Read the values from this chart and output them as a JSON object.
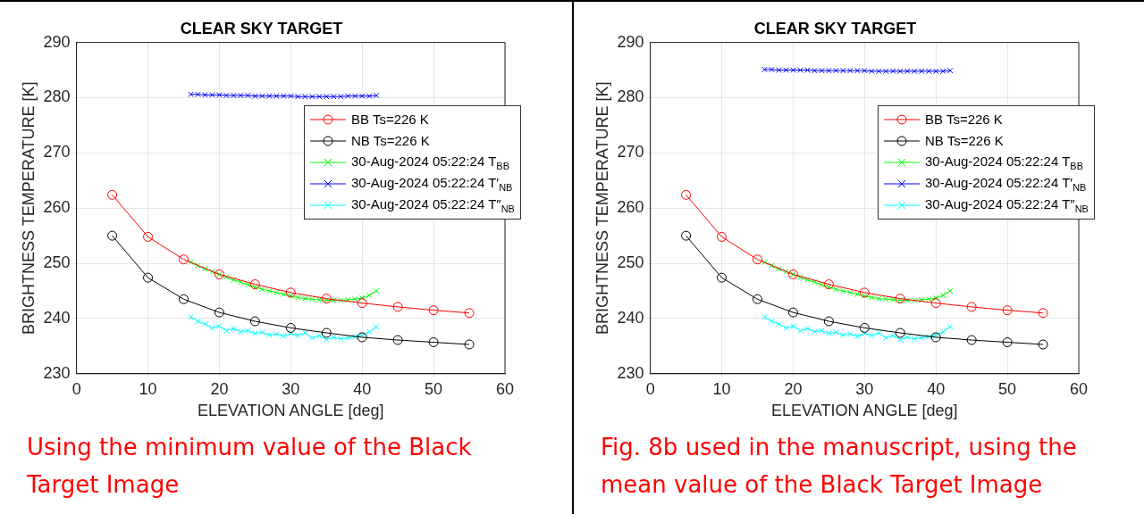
{
  "chart_data": [
    {
      "type": "line",
      "title": "CLEAR SKY TARGET",
      "xlabel": "ELEVATION ANGLE [deg]",
      "ylabel": "BRIGHTNESS TEMPERATURE [K]",
      "xlim": [
        0,
        60
      ],
      "xticks": [
        0,
        10,
        20,
        30,
        40,
        50,
        60
      ],
      "ylim": [
        230,
        290
      ],
      "yticks": [
        230,
        240,
        250,
        260,
        270,
        280,
        290
      ],
      "grid": true,
      "legend": "top right",
      "line_style": "solid",
      "annotations": [
        "Using the minimum value of the Black Target Image"
      ],
      "series": [
        {
          "name": "BB Ts=226 K",
          "color": "#ff0000",
          "marker": "circle",
          "x": [
            5,
            10,
            15,
            20,
            25,
            30,
            35,
            40,
            45,
            50,
            55
          ],
          "values": [
            262.4,
            254.8,
            250.7,
            248.0,
            246.2,
            244.7,
            243.6,
            242.8,
            242.1,
            241.5,
            241.0
          ]
        },
        {
          "name": "NB Ts=226 K",
          "color": "#000000",
          "marker": "circle",
          "x": [
            5,
            10,
            15,
            20,
            25,
            30,
            35,
            40,
            45,
            50,
            55
          ],
          "values": [
            255.0,
            247.4,
            243.5,
            241.1,
            239.5,
            238.3,
            237.4,
            236.6,
            236.1,
            235.7,
            235.3
          ]
        },
        {
          "name": "30-Aug-2024 05:22:24 T$_{BB}$",
          "color": "#00ff00",
          "marker": "cross",
          "x": [
            16,
            17,
            18,
            19,
            20,
            21,
            22,
            23,
            24,
            25,
            26,
            27,
            28,
            29,
            30,
            31,
            32,
            33,
            34,
            35,
            36,
            37,
            38,
            39,
            40,
            41,
            42
          ],
          "values": [
            250.2,
            249.6,
            249,
            248.5,
            248,
            247.5,
            247,
            246.6,
            246.1,
            245.7,
            245.3,
            245,
            244.7,
            244.4,
            244.1,
            243.8,
            243.6,
            243.5,
            243.4,
            243.3,
            243.3,
            243.3,
            243.4,
            243.5,
            243.7,
            244.2,
            245.0
          ]
        },
        {
          "name": "30-Aug-2024 05:22:24 T′$_{NB}$",
          "color": "#0000ff",
          "marker": "cross",
          "x": [
            16,
            17,
            18,
            19,
            20,
            21,
            22,
            23,
            24,
            25,
            26,
            27,
            28,
            29,
            30,
            31,
            32,
            33,
            34,
            35,
            36,
            37,
            38,
            39,
            40,
            41,
            42
          ],
          "values": [
            280.6,
            280.6,
            280.5,
            280.5,
            280.5,
            280.4,
            280.4,
            280.4,
            280.4,
            280.3,
            280.3,
            280.3,
            280.3,
            280.3,
            280.3,
            280.2,
            280.2,
            280.2,
            280.2,
            280.2,
            280.2,
            280.2,
            280.3,
            280.3,
            280.3,
            280.3,
            280.4
          ]
        },
        {
          "name": "30-Aug-2024 05:22:24 T″$_{NB}$",
          "color": "#00ffff",
          "marker": "cross",
          "x": [
            16,
            17,
            18,
            19,
            20,
            21,
            22,
            23,
            24,
            25,
            26,
            27,
            28,
            29,
            30,
            31,
            32,
            33,
            34,
            35,
            36,
            37,
            38,
            39,
            40,
            41,
            42
          ],
          "values": [
            240.3,
            239.5,
            239,
            238.3,
            238.6,
            237.8,
            238.2,
            237.6,
            237.8,
            237.3,
            237.5,
            237.0,
            237.2,
            236.8,
            237.3,
            236.9,
            237.4,
            236.5,
            236.9,
            236.2,
            236.6,
            236.3,
            236.5,
            236.7,
            237,
            237.6,
            238.5
          ]
        }
      ]
    },
    {
      "type": "line",
      "title": "CLEAR SKY TARGET",
      "xlabel": "ELEVATION ANGLE [deg]",
      "ylabel": "BRIGHTNESS TEMPERATURE [K]",
      "xlim": [
        0,
        60
      ],
      "xticks": [
        0,
        10,
        20,
        30,
        40,
        50,
        60
      ],
      "ylim": [
        230,
        290
      ],
      "yticks": [
        230,
        240,
        250,
        260,
        270,
        280,
        290
      ],
      "grid": true,
      "legend": "top right",
      "line_style": "solid",
      "annotations": [
        "Fig. 8b used in the manuscript, using the mean value of the Black Target Image"
      ],
      "series": [
        {
          "name": "BB Ts=226 K",
          "color": "#ff0000",
          "marker": "circle",
          "x": [
            5,
            10,
            15,
            20,
            25,
            30,
            35,
            40,
            45,
            50,
            55
          ],
          "values": [
            262.4,
            254.8,
            250.7,
            248.0,
            246.2,
            244.7,
            243.6,
            242.8,
            242.1,
            241.5,
            241.0
          ]
        },
        {
          "name": "NB Ts=226 K",
          "color": "#000000",
          "marker": "circle",
          "x": [
            5,
            10,
            15,
            20,
            25,
            30,
            35,
            40,
            45,
            50,
            55
          ],
          "values": [
            255.0,
            247.4,
            243.5,
            241.1,
            239.5,
            238.3,
            237.4,
            236.6,
            236.1,
            235.7,
            235.3
          ]
        },
        {
          "name": "30-Aug-2024 05:22:24 T$_{BB}$",
          "color": "#00ff00",
          "marker": "cross",
          "x": [
            16,
            17,
            18,
            19,
            20,
            21,
            22,
            23,
            24,
            25,
            26,
            27,
            28,
            29,
            30,
            31,
            32,
            33,
            34,
            35,
            36,
            37,
            38,
            39,
            40,
            41,
            42
          ],
          "values": [
            250.2,
            249.6,
            249,
            248.5,
            248,
            247.5,
            247,
            246.6,
            246.1,
            245.7,
            245.3,
            245,
            244.7,
            244.4,
            244.1,
            243.8,
            243.6,
            243.5,
            243.4,
            243.3,
            243.3,
            243.3,
            243.4,
            243.5,
            243.7,
            244.2,
            245.0
          ]
        },
        {
          "name": "30-Aug-2024 05:22:24 T′$_{NB}$",
          "color": "#0000ff",
          "marker": "cross",
          "x": [
            16,
            17,
            18,
            19,
            20,
            21,
            22,
            23,
            24,
            25,
            26,
            27,
            28,
            29,
            30,
            31,
            32,
            33,
            34,
            35,
            36,
            37,
            38,
            39,
            40,
            41,
            42
          ],
          "values": [
            285.1,
            285.1,
            285.0,
            285.0,
            285.0,
            285.0,
            285.0,
            284.9,
            284.9,
            284.9,
            284.9,
            284.9,
            284.9,
            284.9,
            284.9,
            284.8,
            284.8,
            284.8,
            284.8,
            284.8,
            284.8,
            284.8,
            284.8,
            284.8,
            284.8,
            284.8,
            284.9
          ]
        },
        {
          "name": "30-Aug-2024 05:22:24 T″$_{NB}$",
          "color": "#00ffff",
          "marker": "cross",
          "x": [
            16,
            17,
            18,
            19,
            20,
            21,
            22,
            23,
            24,
            25,
            26,
            27,
            28,
            29,
            30,
            31,
            32,
            33,
            34,
            35,
            36,
            37,
            38,
            39,
            40,
            41,
            42
          ],
          "values": [
            240.3,
            239.5,
            239,
            238.3,
            238.6,
            237.8,
            238.2,
            237.6,
            237.8,
            237.3,
            237.5,
            237.0,
            237.2,
            236.8,
            237.3,
            236.9,
            237.4,
            236.5,
            236.9,
            236.2,
            236.6,
            236.3,
            236.5,
            236.7,
            237,
            237.6,
            238.5
          ]
        }
      ]
    }
  ]
}
